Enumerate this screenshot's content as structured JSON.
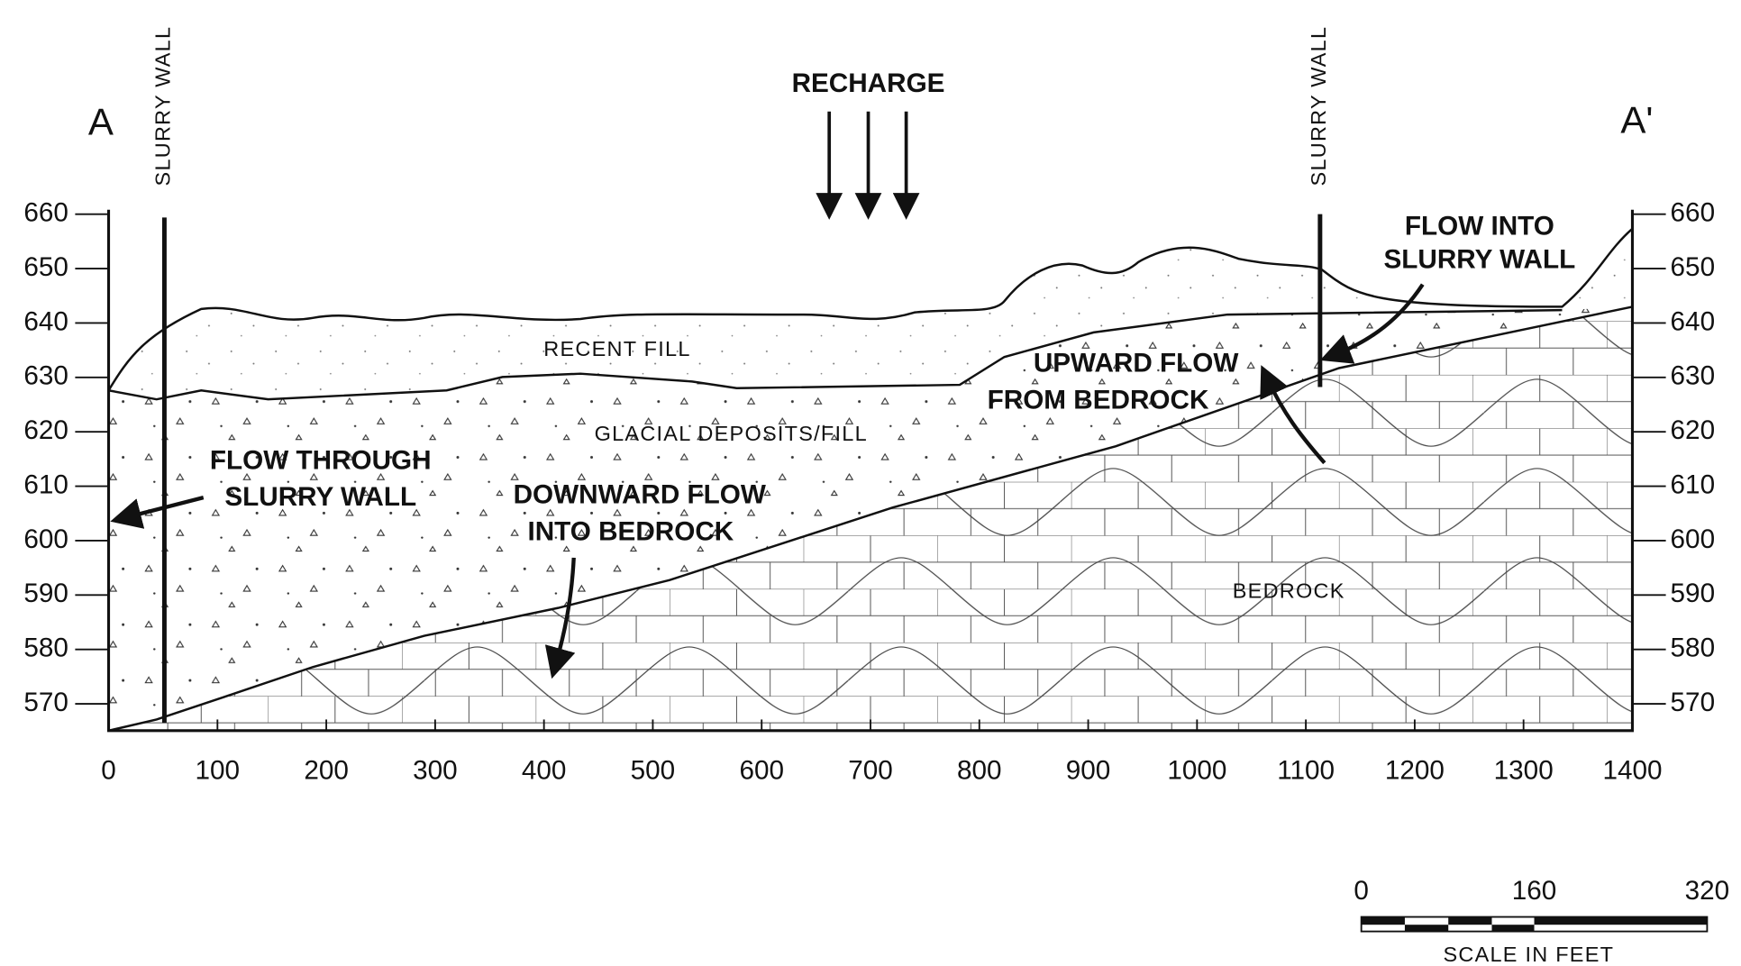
{
  "section": {
    "left_end": "A",
    "right_end": "A'",
    "recharge": "RECHARGE",
    "slurry_wall_left": "SLURRY WALL",
    "slurry_wall_right": "SLURRY WALL",
    "layers": {
      "recent_fill": "RECENT FILL",
      "glacial": "GLACIAL DEPOSITS/FILL",
      "bedrock": "BEDROCK"
    },
    "annotations": {
      "flow_through": [
        "FLOW THROUGH",
        "SLURRY WALL"
      ],
      "downward": [
        "DOWNWARD FLOW",
        "INTO BEDROCK"
      ],
      "upward": [
        "UPWARD FLOW",
        "FROM BEDROCK"
      ],
      "flow_into": [
        "FLOW INTO",
        "SLURRY WALL"
      ]
    }
  },
  "axes": {
    "xticks": [
      0,
      100,
      200,
      300,
      400,
      500,
      600,
      700,
      800,
      900,
      1000,
      1100,
      1200,
      1300,
      1400
    ],
    "yticks": [
      570,
      580,
      590,
      600,
      610,
      620,
      630,
      640,
      650,
      660
    ]
  },
  "scale_bar": {
    "ticks": [
      0,
      160,
      320
    ],
    "label": "SCALE IN FEET"
  }
}
